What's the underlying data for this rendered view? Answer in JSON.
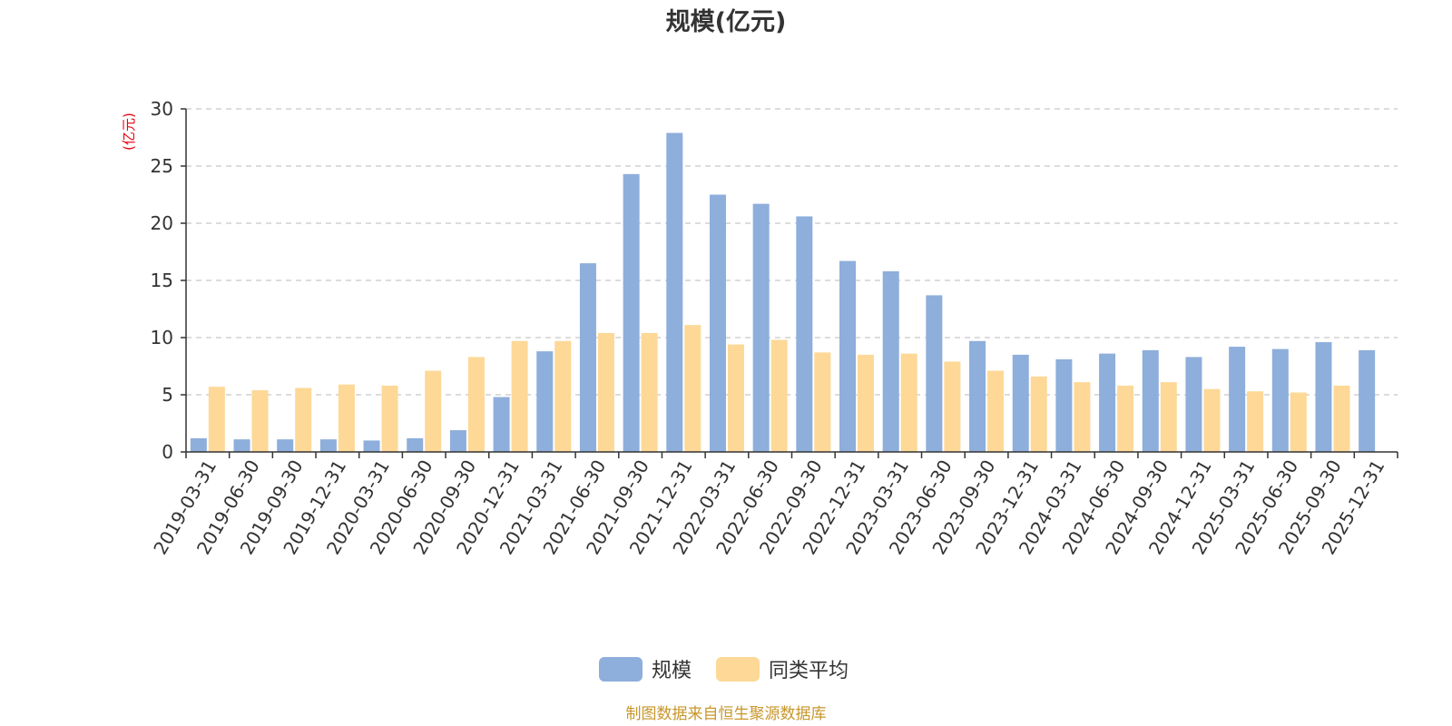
{
  "chart_data": {
    "type": "bar",
    "title": "规模(亿元)",
    "ylabel": "(亿元)",
    "xlabel": "",
    "ylim": [
      0,
      30
    ],
    "yticks": [
      0,
      5,
      10,
      15,
      20,
      25,
      30
    ],
    "grid": true,
    "legend_position": "bottom-center",
    "categories": [
      "2019-03-31",
      "2019-06-30",
      "2019-09-30",
      "2019-12-31",
      "2020-03-31",
      "2020-06-30",
      "2020-09-30",
      "2020-12-31",
      "2021-03-31",
      "2021-06-30",
      "2021-09-30",
      "2021-12-31",
      "2022-03-31",
      "2022-06-30",
      "2022-09-30",
      "2022-12-31",
      "2023-03-31",
      "2023-06-30",
      "2023-09-30",
      "2023-12-31",
      "2024-03-31",
      "2024-06-30",
      "2024-09-30",
      "2024-12-31",
      "2025-03-31",
      "2025-06-30",
      "2025-09-30",
      "2025-12-31"
    ],
    "series": [
      {
        "name": "规模",
        "color": "#8eaedb",
        "values": [
          1.2,
          1.1,
          1.1,
          1.1,
          1.0,
          1.2,
          1.9,
          4.8,
          8.8,
          16.5,
          24.3,
          27.9,
          22.5,
          21.7,
          20.6,
          16.7,
          15.8,
          13.7,
          9.7,
          8.5,
          8.1,
          8.6,
          8.9,
          8.3,
          9.2,
          9.0,
          9.6,
          8.9
        ]
      },
      {
        "name": "同类平均",
        "color": "#fdd897",
        "values": [
          5.7,
          5.4,
          5.6,
          5.9,
          5.8,
          7.1,
          8.3,
          9.7,
          9.7,
          10.4,
          10.4,
          11.1,
          9.4,
          9.8,
          8.7,
          8.5,
          8.6,
          7.9,
          7.1,
          6.6,
          6.1,
          5.8,
          6.1,
          5.5,
          5.3,
          5.2,
          5.8,
          null
        ]
      }
    ],
    "source_note": "制图数据来自恒生聚源数据库"
  }
}
